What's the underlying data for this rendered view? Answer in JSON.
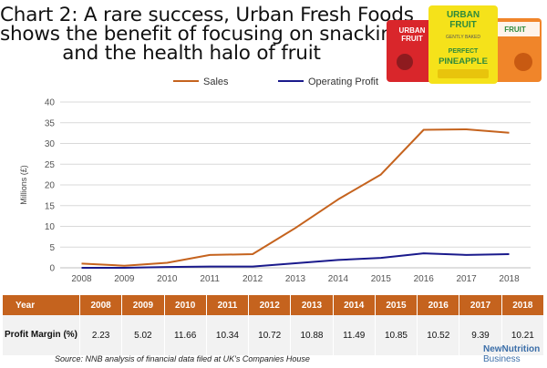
{
  "title": {
    "line1": "Chart 2: A rare success, Urban Fresh Foods",
    "line2": "shows the benefit of focusing on snacking",
    "line3": "and the health halo of fruit"
  },
  "packs": {
    "brand": [
      "URBAN",
      "FRUIT"
    ],
    "center_flavour": [
      "PERFECT",
      "PINEAPPLE"
    ],
    "tag": "GENTLY BAKED",
    "colors": {
      "left": "#d9262b",
      "center": "#f5e21a",
      "right": "#f0852a",
      "brand_green": "#2e8a3c"
    }
  },
  "chart_data": {
    "type": "line",
    "x": [
      2008,
      2009,
      2010,
      2011,
      2012,
      2013,
      2014,
      2015,
      2016,
      2017,
      2018
    ],
    "series": [
      {
        "name": "Sales",
        "color": "#c5631e",
        "values": [
          1.0,
          0.5,
          1.2,
          3.1,
          3.3,
          9.6,
          16.5,
          22.5,
          33.3,
          33.4,
          32.6
        ]
      },
      {
        "name": "Operating Profit",
        "color": "#1a1a8c",
        "values": [
          0.0,
          0.0,
          0.2,
          0.3,
          0.3,
          1.1,
          1.9,
          2.4,
          3.5,
          3.1,
          3.3
        ]
      }
    ],
    "ylabel": "Millions (£)",
    "ylim": [
      0,
      40
    ],
    "yticks": [
      0,
      5,
      10,
      15,
      20,
      25,
      30,
      35,
      40
    ],
    "legend_position": "top",
    "grid": "horizontal"
  },
  "table": {
    "header_label": "Year",
    "row_label": "Profit Margin (%)",
    "years": [
      "2008",
      "2009",
      "2010",
      "2011",
      "2012",
      "2013",
      "2014",
      "2015",
      "2016",
      "2017",
      "2018"
    ],
    "values": [
      "2.23",
      "5.02",
      "11.66",
      "10.34",
      "10.72",
      "10.88",
      "11.49",
      "10.85",
      "10.52",
      "9.39",
      "10.21"
    ],
    "header_color": "#c5631e"
  },
  "source": "Source: NNB analysis of financial data filed at UK's Companies House",
  "brand": {
    "line1": "NewNutrition",
    "line2": "Business"
  }
}
